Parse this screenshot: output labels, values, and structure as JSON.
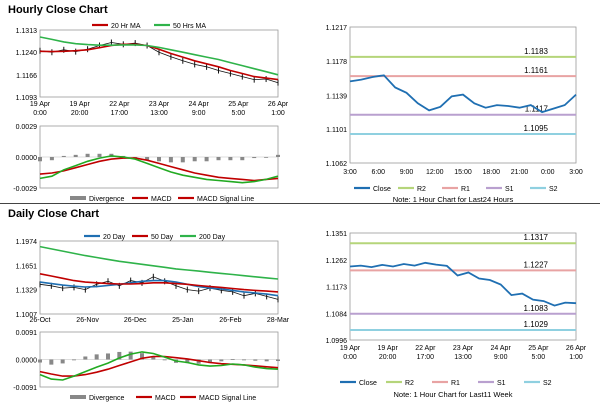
{
  "colors": {
    "close": "#1f6fb2",
    "ma_red": "#c00000",
    "ma_green": "#2fb34a",
    "r2": "#b5d57a",
    "r1": "#e8a3a3",
    "s1": "#b9a0cf",
    "s2": "#8fd0e0",
    "macd_red": "#c00000",
    "macd_green": "#22aa22",
    "divergence": "#888888",
    "price_bar": "#111111"
  },
  "hourly": {
    "title": "Hourly Close Chart",
    "note": "Note: 1 Hour Chart for Last24 Hours",
    "ma_legend": [
      "20 Hr MA",
      "50 Hrs MA"
    ],
    "macd_legend": [
      "Divergence",
      "MACD",
      "MACD Signal Line"
    ],
    "legend": [
      "Close",
      "R2",
      "R1",
      "S1",
      "S2"
    ]
  },
  "daily": {
    "title": "Daily Close Chart",
    "note": "Note: 1 Hour Chart for Last11 Week",
    "ma_legend": [
      "20 Day",
      "50 Day",
      "200 Day"
    ],
    "macd_legend": [
      "Divergence",
      "MACD",
      "MACD Signal Line"
    ],
    "legend": [
      "Close",
      "R2",
      "R1",
      "S1",
      "S2"
    ]
  },
  "chart_data": [
    {
      "id": "hourly_price_ma",
      "type": "line",
      "title": "Hourly Close Chart",
      "y_ticks": [
        "1.1313",
        "1.1240",
        "1.1166",
        "1.1093"
      ],
      "ylim": [
        1.1093,
        1.1313
      ],
      "x_ticks": [
        "19 Apr\n0:00",
        "19 Apr\n20:00",
        "22 Apr\n17:00",
        "23 Apr\n13:00",
        "24 Apr\n9:00",
        "25 Apr\n5:00",
        "26 Apr\n1:00"
      ],
      "series": [
        {
          "name": "Price",
          "values": [
            1.1245,
            1.124,
            1.1248,
            1.1242,
            1.125,
            1.1262,
            1.1272,
            1.1266,
            1.127,
            1.1262,
            1.124,
            1.1225,
            1.1212,
            1.12,
            1.1192,
            1.118,
            1.117,
            1.116,
            1.115,
            1.1152,
            1.114
          ]
        },
        {
          "name": "20 Hr MA",
          "values": [
            1.1243,
            1.1242,
            1.1243,
            1.1245,
            1.1248,
            1.1255,
            1.1262,
            1.1266,
            1.1266,
            1.1262,
            1.125,
            1.1236,
            1.1224,
            1.1212,
            1.1202,
            1.1192,
            1.118,
            1.117,
            1.116,
            1.1155,
            1.115
          ]
        },
        {
          "name": "50 Hrs MA",
          "values": [
            1.129,
            1.1282,
            1.1274,
            1.1268,
            1.1265,
            1.1263,
            1.1263,
            1.1264,
            1.1264,
            1.1262,
            1.1256,
            1.1248,
            1.124,
            1.1232,
            1.1224,
            1.1216,
            1.1206,
            1.1196,
            1.1186,
            1.1176,
            1.1166
          ]
        }
      ]
    },
    {
      "id": "hourly_macd",
      "type": "line",
      "y_ticks": [
        "0.0029",
        "0.0000",
        "-0.0029"
      ],
      "ylim": [
        -0.0029,
        0.0029
      ],
      "series": [
        {
          "name": "MACD",
          "values": [
            -0.002,
            -0.0018,
            -0.0012,
            -0.0008,
            -0.0004,
            -0.0001,
            0.0001,
            0.0,
            -0.0002,
            -0.0006,
            -0.001,
            -0.0014,
            -0.0017,
            -0.0019,
            -0.0021,
            -0.0022,
            -0.0023,
            -0.0024,
            -0.0023,
            -0.0021,
            -0.0018
          ]
        },
        {
          "name": "MACD Signal Line",
          "values": [
            -0.0016,
            -0.0015,
            -0.0013,
            -0.001,
            -0.0007,
            -0.0004,
            -0.0002,
            -0.0001,
            -0.0001,
            -0.0003,
            -0.0006,
            -0.0009,
            -0.0012,
            -0.0015,
            -0.0017,
            -0.0019,
            -0.002,
            -0.0021,
            -0.0022,
            -0.0021,
            -0.002
          ]
        },
        {
          "name": "Divergence",
          "values": [
            -0.0004,
            -0.0003,
            0.0001,
            0.0002,
            0.0003,
            0.0003,
            0.0003,
            0.0001,
            -0.0001,
            -0.0003,
            -0.0004,
            -0.0005,
            -0.0005,
            -0.0004,
            -0.0004,
            -0.0003,
            -0.0003,
            -0.0003,
            -0.0001,
            0.0,
            0.0002
          ]
        }
      ]
    },
    {
      "id": "hourly_close",
      "type": "line",
      "y_ticks": [
        "1.1217",
        "1.1178",
        "1.1139",
        "1.1101",
        "1.1062"
      ],
      "ylim": [
        1.1062,
        1.1217
      ],
      "x_ticks": [
        "3:00",
        "6:00",
        "9:00",
        "12:00",
        "15:00",
        "18:00",
        "21:00",
        "0:00",
        "3:00"
      ],
      "levels": [
        {
          "name": "R2",
          "value": 1.1183,
          "label": "1.1183"
        },
        {
          "name": "R1",
          "value": 1.1161,
          "label": "1.1161"
        },
        {
          "name": "S1",
          "value": 1.1117,
          "label": "1.1117"
        },
        {
          "name": "S2",
          "value": 1.1095,
          "label": "1.1095"
        }
      ],
      "series": [
        {
          "name": "Close",
          "values": [
            1.1155,
            1.1157,
            1.116,
            1.1162,
            1.1148,
            1.1142,
            1.113,
            1.1122,
            1.1126,
            1.1138,
            1.114,
            1.113,
            1.1125,
            1.1128,
            1.1127,
            1.1125,
            1.1128,
            1.112,
            1.1124,
            1.1128,
            1.114
          ]
        }
      ]
    },
    {
      "id": "daily_price_ma",
      "type": "line",
      "title": "Daily Close Chart",
      "y_ticks": [
        "1.1974",
        "1.1651",
        "1.1329",
        "1.1007"
      ],
      "ylim": [
        1.1007,
        1.1974
      ],
      "x_ticks": [
        "26-Oct",
        "26-Nov",
        "26-Dec",
        "25-Jan",
        "26-Feb",
        "28-Mar"
      ],
      "series": [
        {
          "name": "Price",
          "values": [
            1.14,
            1.138,
            1.135,
            1.136,
            1.133,
            1.14,
            1.144,
            1.138,
            1.145,
            1.142,
            1.15,
            1.144,
            1.138,
            1.133,
            1.131,
            1.135,
            1.132,
            1.13,
            1.125,
            1.128,
            1.124,
            1.12
          ]
        },
        {
          "name": "20 Day",
          "values": [
            1.143,
            1.141,
            1.139,
            1.1375,
            1.1365,
            1.137,
            1.1385,
            1.14,
            1.142,
            1.144,
            1.145,
            1.145,
            1.143,
            1.14,
            1.137,
            1.135,
            1.134,
            1.132,
            1.13,
            1.1285,
            1.127,
            1.125
          ]
        },
        {
          "name": "50 Day",
          "values": [
            1.154,
            1.151,
            1.148,
            1.145,
            1.143,
            1.142,
            1.141,
            1.1405,
            1.1405,
            1.141,
            1.142,
            1.142,
            1.141,
            1.14,
            1.1385,
            1.137,
            1.136,
            1.1345,
            1.133,
            1.132,
            1.131,
            1.13
          ]
        },
        {
          "name": "200 Day",
          "values": [
            1.19,
            1.187,
            1.184,
            1.181,
            1.178,
            1.1755,
            1.173,
            1.1705,
            1.1685,
            1.1665,
            1.1645,
            1.1625,
            1.1605,
            1.159,
            1.1575,
            1.156,
            1.1545,
            1.153,
            1.1515,
            1.15,
            1.1485,
            1.147
          ]
        }
      ]
    },
    {
      "id": "daily_macd",
      "type": "line",
      "y_ticks": [
        "0.0091",
        "0.0000",
        "-0.0091"
      ],
      "ylim": [
        -0.0091,
        0.0091
      ],
      "series": [
        {
          "name": "MACD",
          "values": [
            -0.005,
            -0.0065,
            -0.0068,
            -0.0055,
            -0.004,
            -0.0025,
            -0.0012,
            0.0005,
            0.0018,
            0.0025,
            0.002,
            0.0008,
            -0.0005,
            -0.001,
            -0.0018,
            -0.0022,
            -0.002,
            -0.0015,
            -0.0018,
            -0.0025,
            -0.003,
            -0.0032
          ]
        },
        {
          "name": "MACD Signal Line",
          "values": [
            -0.004,
            -0.0048,
            -0.0055,
            -0.0055,
            -0.005,
            -0.0042,
            -0.0032,
            -0.002,
            -0.0008,
            0.0004,
            0.001,
            0.001,
            0.0006,
            0.0002,
            -0.0004,
            -0.001,
            -0.0014,
            -0.0016,
            -0.0018,
            -0.0021,
            -0.0024,
            -0.0027
          ]
        },
        {
          "name": "Divergence",
          "values": [
            -0.001,
            -0.0017,
            -0.0013,
            0.0,
            0.001,
            0.0017,
            0.002,
            0.0025,
            0.0026,
            0.0021,
            0.001,
            -0.0002,
            -0.0011,
            -0.0012,
            -0.0014,
            -0.0012,
            -0.0006,
            0.0001,
            0.0,
            -0.0004,
            -0.0006,
            -0.0005
          ]
        }
      ]
    },
    {
      "id": "daily_close",
      "type": "line",
      "y_ticks": [
        "1.1351",
        "1.1262",
        "1.1173",
        "1.1084",
        "1.0996"
      ],
      "ylim": [
        1.0996,
        1.1351
      ],
      "x_ticks": [
        "19 Apr\n0:00",
        "19 Apr\n20:00",
        "22 Apr\n17:00",
        "23 Apr\n13:00",
        "24 Apr\n9:00",
        "25 Apr\n5:00",
        "26 Apr\n1:00"
      ],
      "levels": [
        {
          "name": "R2",
          "value": 1.1317,
          "label": "1.1317"
        },
        {
          "name": "R1",
          "value": 1.1227,
          "label": "1.1227"
        },
        {
          "name": "S1",
          "value": 1.1083,
          "label": "1.1083"
        },
        {
          "name": "S2",
          "value": 1.1029,
          "label": "1.1029"
        }
      ],
      "series": [
        {
          "name": "Close",
          "values": [
            1.124,
            1.1243,
            1.1238,
            1.1245,
            1.124,
            1.1248,
            1.1243,
            1.1252,
            1.1246,
            1.1242,
            1.121,
            1.122,
            1.12,
            1.1195,
            1.118,
            1.1145,
            1.115,
            1.113,
            1.1125,
            1.111,
            1.112,
            1.1118
          ]
        }
      ]
    }
  ]
}
